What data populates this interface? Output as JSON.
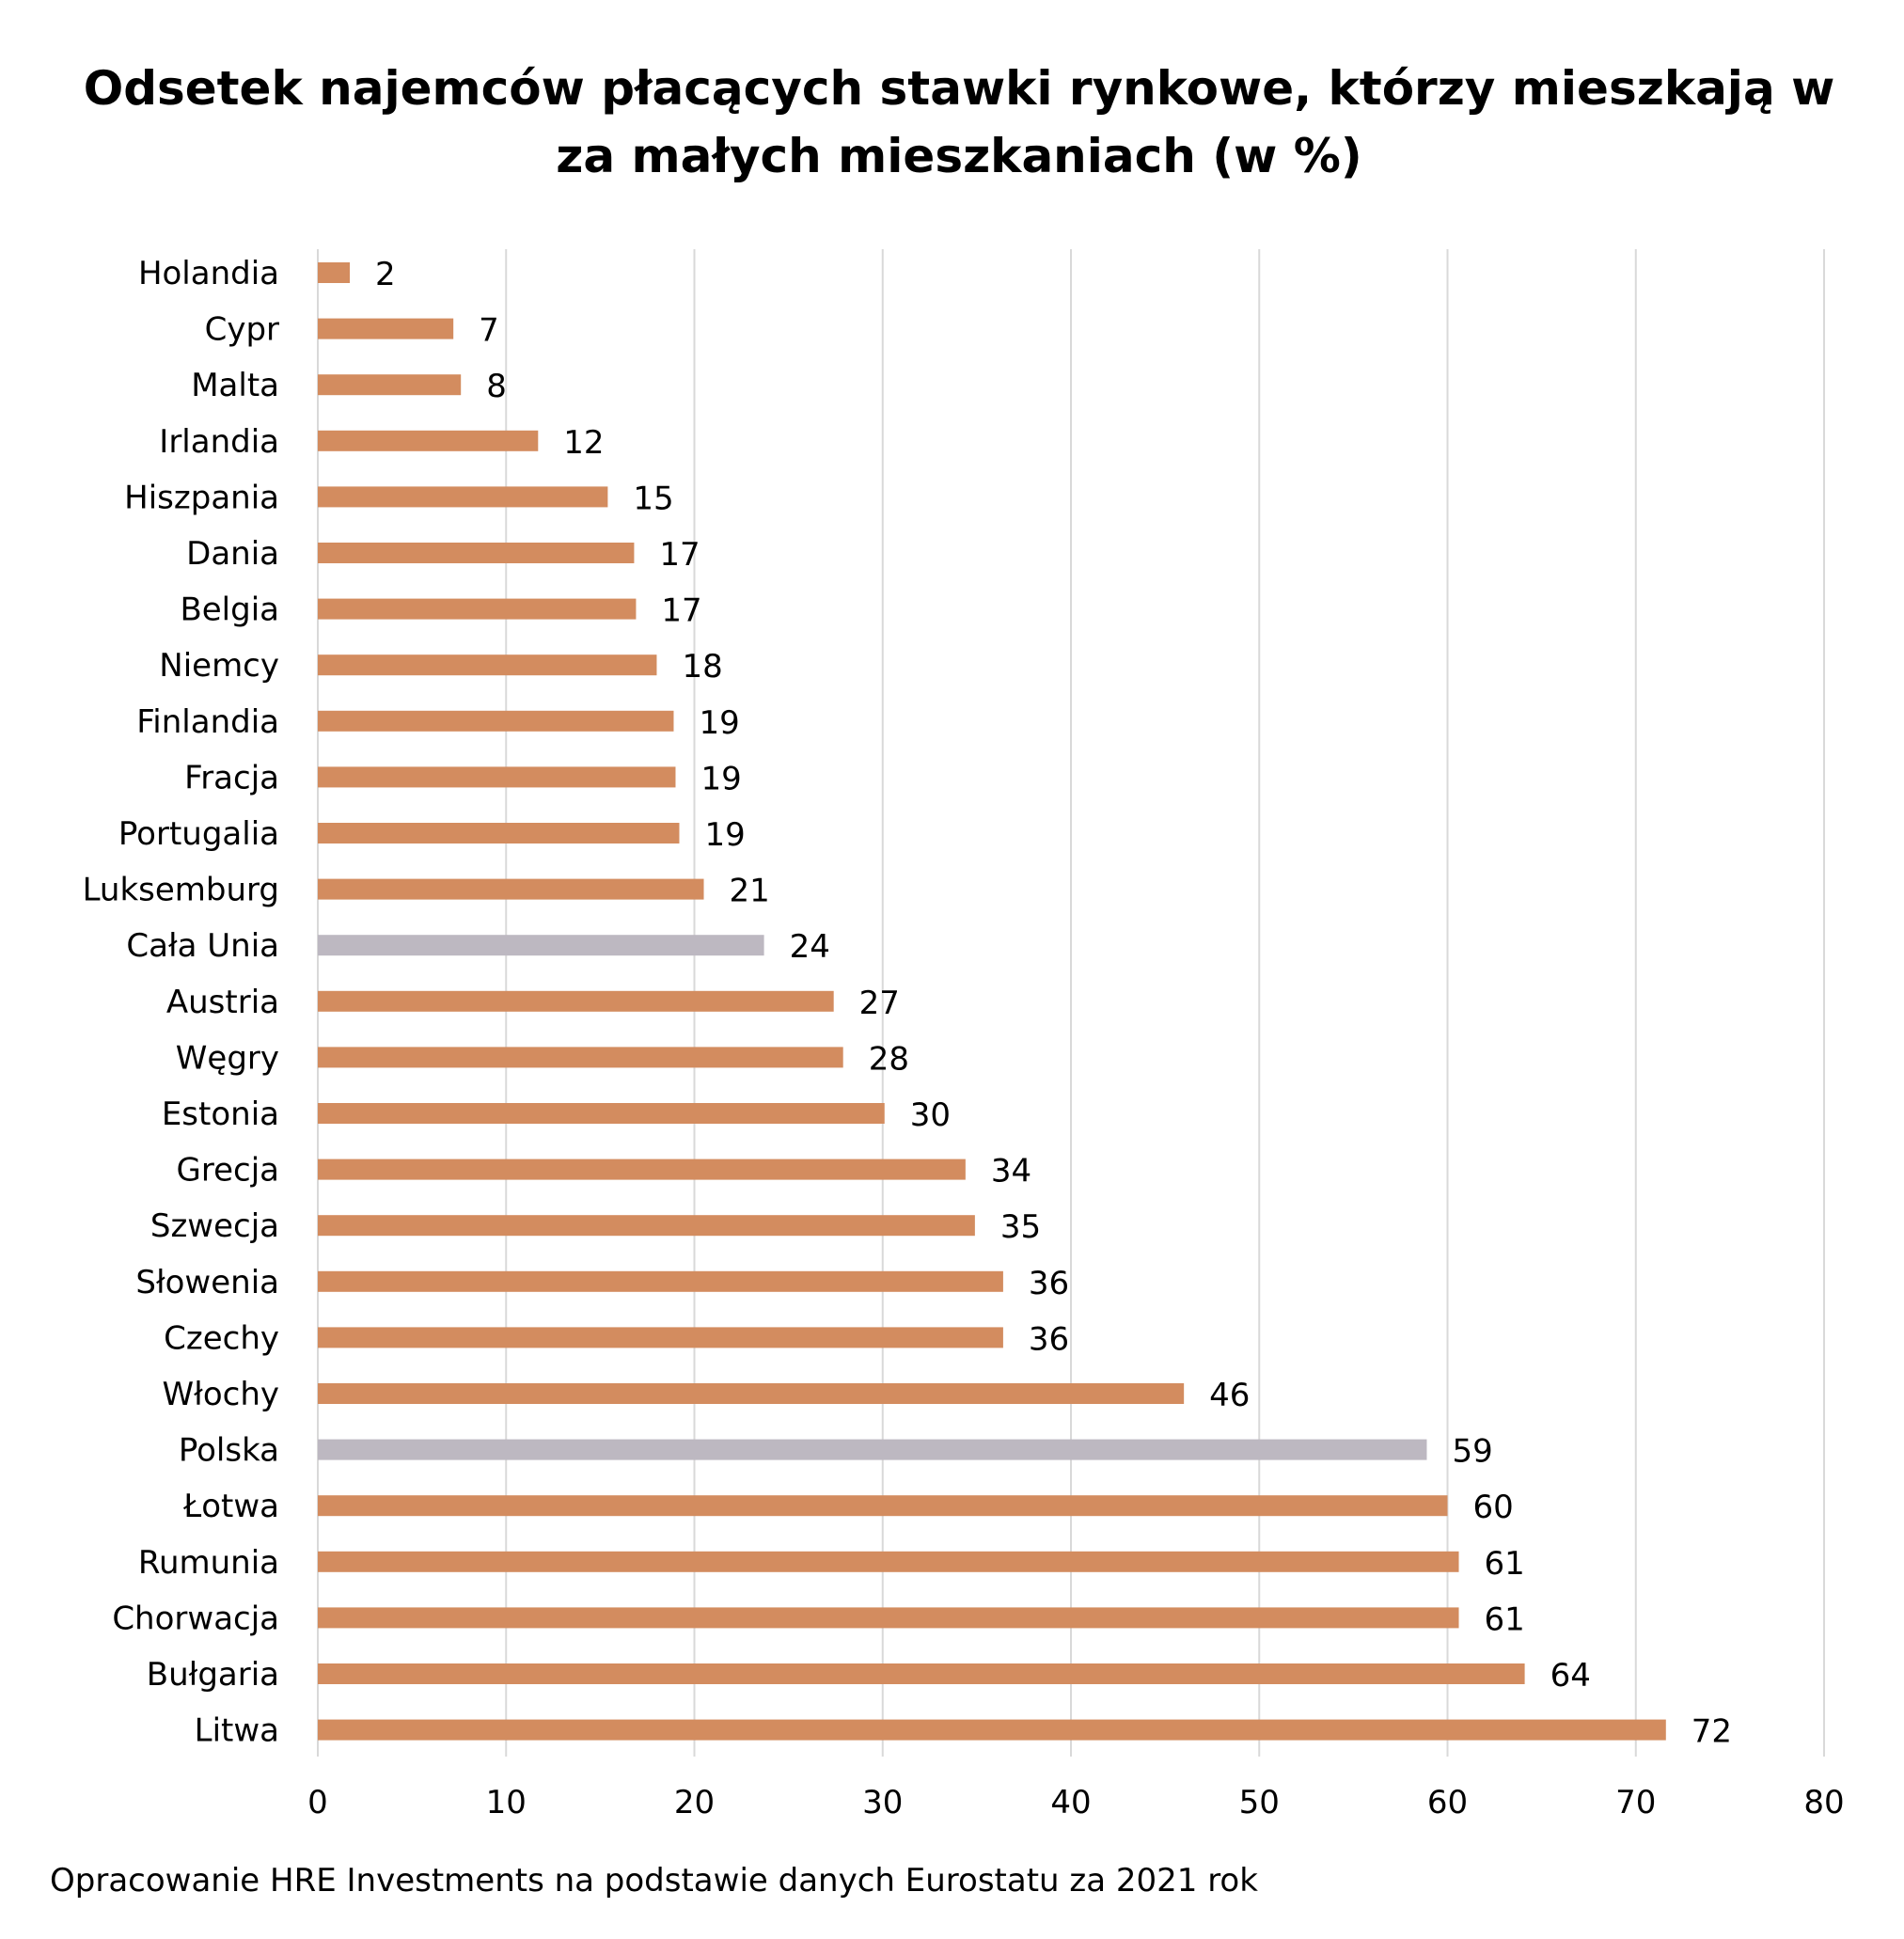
{
  "chart_data": {
    "type": "bar",
    "orientation": "horizontal",
    "title": "Odsetek najemców płacących stawki rynkowe, którzy mieszkają w za małych mieszkaniach (w %)",
    "categories": [
      "Holandia",
      "Cypr",
      "Malta",
      "Irlandia",
      "Hiszpania",
      "Dania",
      "Belgia",
      "Niemcy",
      "Finlandia",
      "Fracja",
      "Portugalia",
      "Luksemburg",
      "Cała Unia",
      "Austria",
      "Węgry",
      "Estonia",
      "Grecja",
      "Szwecja",
      "Słowenia",
      "Czechy",
      "Włochy",
      "Polska",
      "Łotwa",
      "Rumunia",
      "Chorwacja",
      "Bułgaria",
      "Litwa"
    ],
    "values": [
      1.7,
      7.2,
      7.6,
      11.7,
      15.4,
      16.8,
      16.9,
      18.0,
      18.9,
      19.0,
      19.2,
      20.5,
      23.7,
      27.4,
      27.9,
      30.1,
      34.4,
      34.9,
      36.4,
      36.4,
      46.0,
      58.9,
      60.0,
      60.6,
      60.6,
      64.1,
      71.6
    ],
    "value_labels": [
      "2",
      "7",
      "8",
      "12",
      "15",
      "17",
      "17",
      "18",
      "19",
      "19",
      "19",
      "21",
      "24",
      "27",
      "28",
      "30",
      "34",
      "35",
      "36",
      "36",
      "46",
      "59",
      "60",
      "61",
      "61",
      "64",
      "72"
    ],
    "highlighted": [
      "Cała Unia",
      "Polska"
    ],
    "xlim": [
      0,
      80
    ],
    "xticks": [
      0,
      10,
      20,
      30,
      40,
      50,
      60,
      70,
      80
    ],
    "grid": "vertical",
    "legend": "none",
    "xlabel": "",
    "ylabel": ""
  },
  "colors": {
    "bar": "#d38c5f",
    "highlight": "#bdb8c1",
    "grid": "#d9d9d9"
  },
  "source_note": "Opracowanie HRE Investments na podstawie danych Eurostatu za 2021 rok"
}
